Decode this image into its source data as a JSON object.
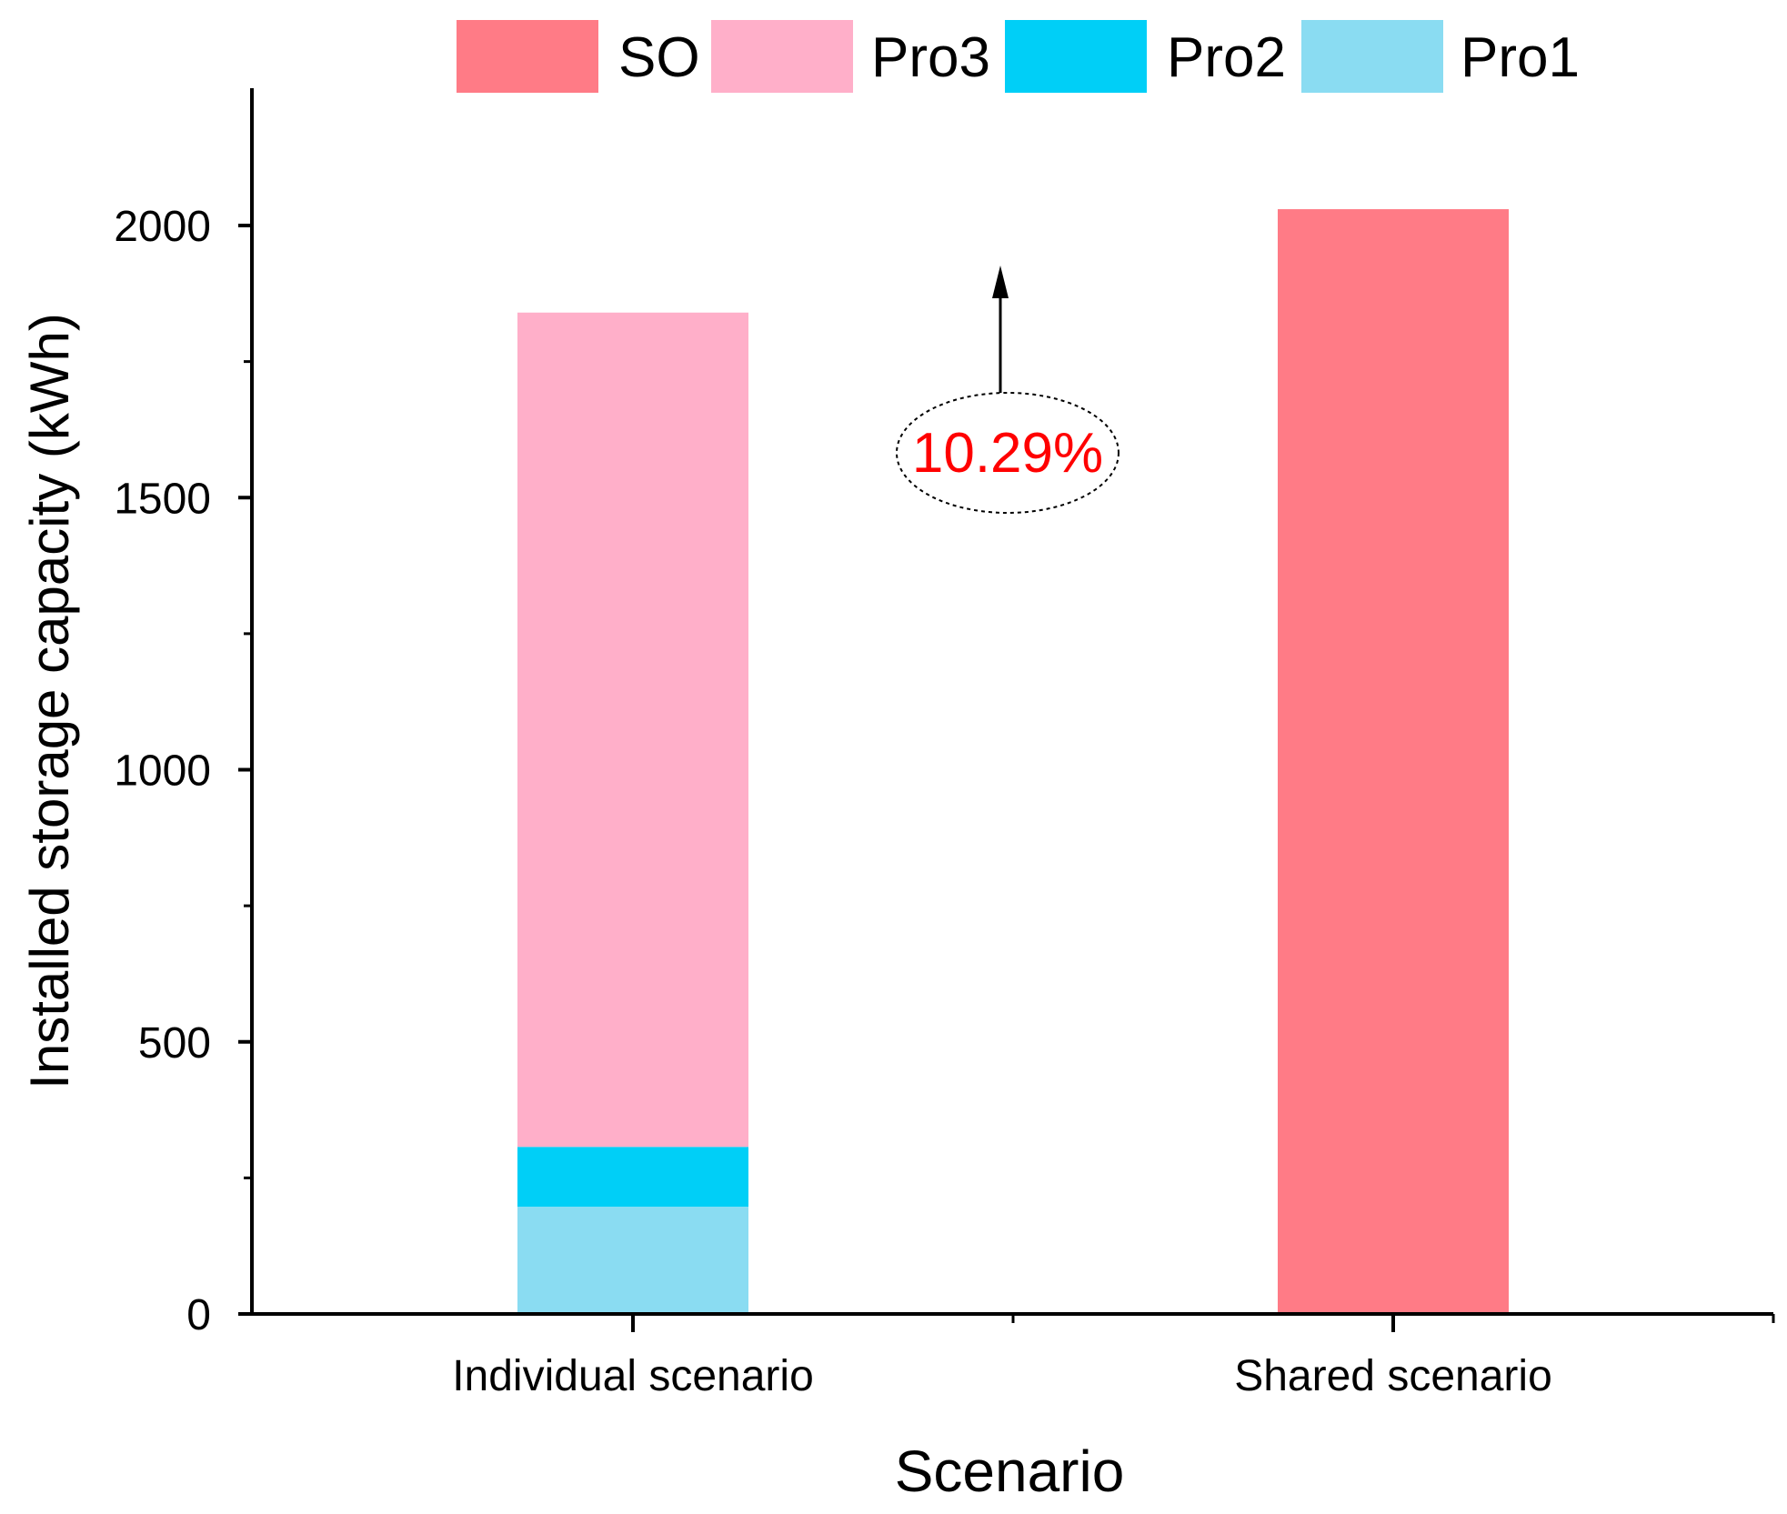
{
  "chart_data": {
    "type": "stacked-bar",
    "title": "",
    "xlabel": "Scenario",
    "ylabel": "Installed storage capacity (kWh)",
    "ylim": [
      0,
      2250
    ],
    "yticks": [
      0,
      500,
      1000,
      1500,
      2000
    ],
    "ytick_labels": [
      "0",
      "500",
      "1000",
      "1500",
      "2000"
    ],
    "grid": false,
    "legend_position": "top",
    "categories": [
      "Individual scenario",
      "Shared scenario"
    ],
    "series": [
      {
        "name": "SO",
        "color": "#ff7b86",
        "values": [
          0,
          2030
        ]
      },
      {
        "name": "Pro3",
        "color": "#ffafc9",
        "values": [
          1533,
          0
        ]
      },
      {
        "name": "Pro2",
        "color": "#00cff7",
        "values": [
          110,
          0
        ]
      },
      {
        "name": "Pro1",
        "color": "#8adcf2",
        "values": [
          197,
          0
        ]
      }
    ],
    "stack_order": [
      "Pro1",
      "Pro2",
      "Pro3",
      "SO"
    ],
    "annotation": {
      "text": "10.29%",
      "color": "#ff0000"
    }
  }
}
